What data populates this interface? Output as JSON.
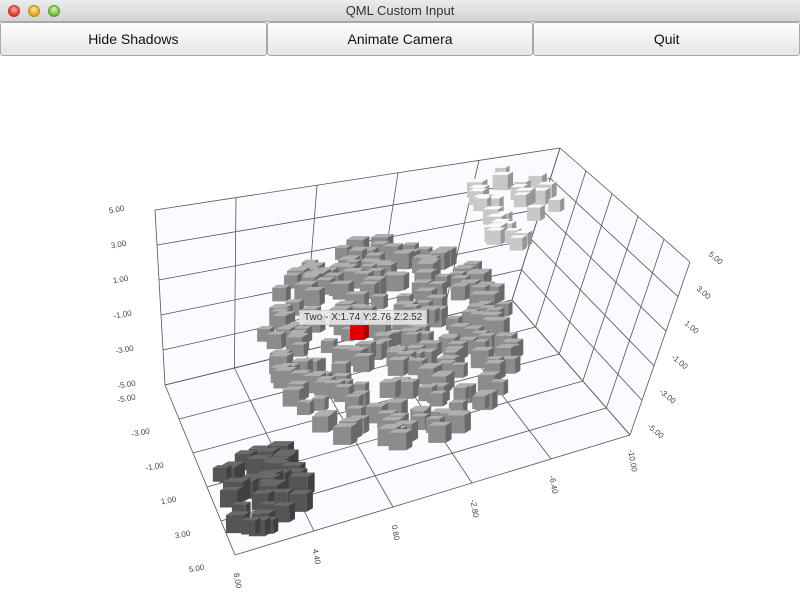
{
  "window": {
    "title": "QML Custom Input"
  },
  "toolbar": {
    "hide_shadows_label": "Hide Shadows",
    "animate_camera_label": "Animate Camera",
    "quit_label": "Quit"
  },
  "chart_data": {
    "type": "scatter",
    "dimensions": 3,
    "y_ticks": [
      "5.00",
      "3.00",
      "1.00",
      "-1.00",
      "-3.00",
      "-5.00"
    ],
    "z_ticks": [
      "-5.00",
      "-3.00",
      "-1.00",
      "1.00",
      "3.00",
      "5.00"
    ],
    "x_ticks": [
      "8.00",
      "4.40",
      "0.80",
      "-2.80",
      "-6.40",
      "-10.00"
    ],
    "right_ticks": [
      "5.00",
      "3.00",
      "1.00",
      "-1.00",
      "-3.00",
      "-5.00"
    ],
    "grid": true,
    "series_colors": [
      "#555555",
      "#8c8c8c",
      "#c8c8c8"
    ],
    "selected_color": "#e00000",
    "selected_label": "Two - X:1.74 Y:2.76 Z:2.52"
  }
}
